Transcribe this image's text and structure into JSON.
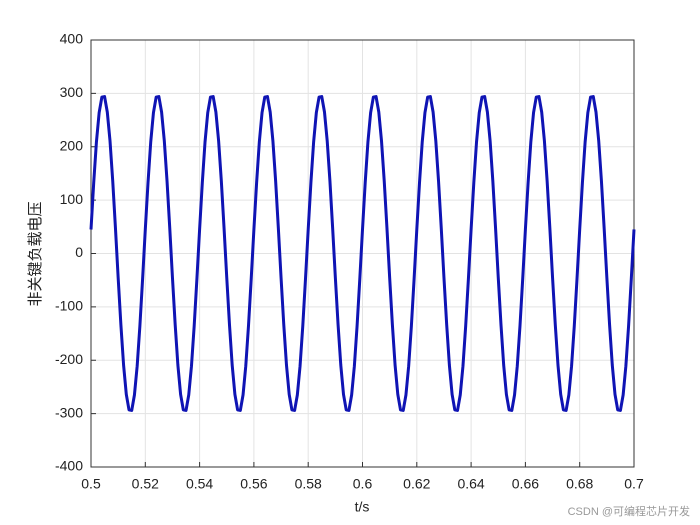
{
  "chart_data": {
    "type": "line",
    "xlabel": "t/s",
    "ylabel": "非关键负载电压",
    "watermark": "CSDN @可编程芯片开发",
    "xlim": [
      0.5,
      0.7
    ],
    "ylim": [
      -400,
      400
    ],
    "xticks": [
      0.5,
      0.52,
      0.54,
      0.56,
      0.58,
      0.6,
      0.62,
      0.64,
      0.66,
      0.68,
      0.7
    ],
    "yticks": [
      -400,
      -300,
      -200,
      -100,
      0,
      100,
      200,
      300,
      400
    ],
    "grid": true,
    "series": [
      {
        "color": "#0f14b4",
        "x": [
          0.5,
          0.501,
          0.502,
          0.503,
          0.504,
          0.505,
          0.506,
          0.507,
          0.508,
          0.509,
          0.51,
          0.511,
          0.512,
          0.513,
          0.514,
          0.515,
          0.516,
          0.517,
          0.518,
          0.519,
          0.52,
          0.521,
          0.522,
          0.523,
          0.524,
          0.525,
          0.526,
          0.527,
          0.528,
          0.529,
          0.53,
          0.531,
          0.532,
          0.533,
          0.534,
          0.535,
          0.536,
          0.537,
          0.538,
          0.539,
          0.54,
          0.541,
          0.542,
          0.543,
          0.544,
          0.545,
          0.546,
          0.547,
          0.548,
          0.549,
          0.55,
          0.551,
          0.552,
          0.553,
          0.554,
          0.555,
          0.556,
          0.557,
          0.558,
          0.559,
          0.56,
          0.561,
          0.562,
          0.563,
          0.564,
          0.565,
          0.566,
          0.567,
          0.568,
          0.569,
          0.57,
          0.571,
          0.572,
          0.573,
          0.574,
          0.575,
          0.576,
          0.577,
          0.578,
          0.579,
          0.58,
          0.581,
          0.582,
          0.583,
          0.584,
          0.585,
          0.586,
          0.587,
          0.588,
          0.589,
          0.59,
          0.591,
          0.592,
          0.593,
          0.594,
          0.595,
          0.596,
          0.597,
          0.598,
          0.599,
          0.6,
          0.601,
          0.602,
          0.603,
          0.604,
          0.605,
          0.606,
          0.607,
          0.608,
          0.609,
          0.61,
          0.611,
          0.612,
          0.613,
          0.614,
          0.615,
          0.616,
          0.617,
          0.618,
          0.619,
          0.62,
          0.621,
          0.622,
          0.623,
          0.624,
          0.625,
          0.626,
          0.627,
          0.628,
          0.629,
          0.63,
          0.631,
          0.632,
          0.633,
          0.634,
          0.635,
          0.636,
          0.637,
          0.638,
          0.639,
          0.64,
          0.641,
          0.642,
          0.643,
          0.644,
          0.645,
          0.646,
          0.647,
          0.648,
          0.649,
          0.65,
          0.651,
          0.652,
          0.653,
          0.654,
          0.655,
          0.656,
          0.657,
          0.658,
          0.659,
          0.66,
          0.661,
          0.662,
          0.663,
          0.664,
          0.665,
          0.666,
          0.667,
          0.668,
          0.669,
          0.67,
          0.671,
          0.672,
          0.673,
          0.674,
          0.675,
          0.676,
          0.677,
          0.678,
          0.679,
          0.68,
          0.681,
          0.682,
          0.683,
          0.684,
          0.685,
          0.686,
          0.687,
          0.688,
          0.689,
          0.69,
          0.691,
          0.692,
          0.693,
          0.694,
          0.695,
          0.696,
          0.697,
          0.698,
          0.699,
          0.7
        ],
        "values": [
          45,
          133,
          209,
          264,
          293,
          294,
          265,
          211,
          136,
          48,
          -45,
          -133,
          -209,
          -264,
          -293,
          -294,
          -265,
          -211,
          -136,
          -48,
          45,
          133,
          209,
          264,
          293,
          294,
          265,
          211,
          136,
          48,
          -45,
          -133,
          -209,
          -264,
          -293,
          -294,
          -265,
          -211,
          -136,
          -48,
          45,
          133,
          209,
          264,
          293,
          294,
          265,
          211,
          136,
          48,
          -45,
          -133,
          -209,
          -264,
          -293,
          -294,
          -265,
          -211,
          -136,
          -48,
          45,
          133,
          209,
          264,
          293,
          294,
          265,
          211,
          136,
          48,
          -45,
          -133,
          -209,
          -264,
          -293,
          -294,
          -265,
          -211,
          -136,
          -48,
          45,
          133,
          209,
          264,
          293,
          294,
          265,
          211,
          136,
          48,
          -45,
          -133,
          -209,
          -264,
          -293,
          -294,
          -265,
          -211,
          -136,
          -48,
          45,
          133,
          209,
          264,
          293,
          294,
          265,
          211,
          136,
          48,
          -45,
          -133,
          -209,
          -264,
          -293,
          -294,
          -265,
          -211,
          -136,
          -48,
          45,
          133,
          209,
          264,
          293,
          294,
          265,
          211,
          136,
          48,
          -45,
          -133,
          -209,
          -264,
          -293,
          -294,
          -265,
          -211,
          -136,
          -48,
          45,
          133,
          209,
          264,
          293,
          294,
          265,
          211,
          136,
          48,
          -45,
          -133,
          -209,
          -264,
          -293,
          -294,
          -265,
          -211,
          -136,
          -48,
          45,
          133,
          209,
          264,
          293,
          294,
          265,
          211,
          136,
          48,
          -45,
          -133,
          -209,
          -264,
          -293,
          -294,
          -265,
          -211,
          -136,
          -48,
          45,
          133,
          209,
          264,
          293,
          294,
          265,
          211,
          136,
          48,
          -45,
          -133,
          -209,
          -264,
          -293,
          -294,
          -265,
          -211,
          -136,
          -48,
          45
        ]
      }
    ]
  }
}
